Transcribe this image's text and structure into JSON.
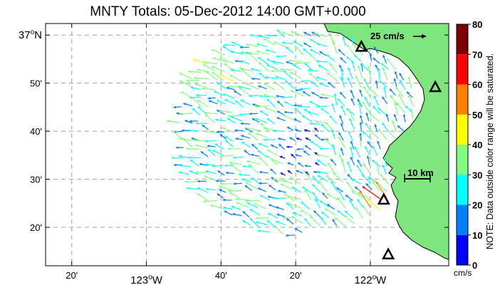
{
  "title": "MNTY Totals: 05-Dec-2012 14:00 GMT+0.000",
  "lat_ticks": [
    {
      "deg": "37",
      "sup": "o",
      "hemi": "N",
      "lat": 37.0
    },
    {
      "text": "50'",
      "lat": 36.8333
    },
    {
      "text": "40'",
      "lat": 36.6667
    },
    {
      "text": "30'",
      "lat": 36.5
    },
    {
      "text": "20'",
      "lat": 36.3333
    }
  ],
  "lon_ticks": [
    {
      "text": "20'",
      "lon": -123.3333
    },
    {
      "deg": "123",
      "sup": "o",
      "hemi": "W",
      "lon": -123.0
    },
    {
      "text": "40'",
      "lon": -122.6667
    },
    {
      "text": "20'",
      "lon": -122.3333
    },
    {
      "deg": "122",
      "sup": "o",
      "hemi": "W",
      "lon": -122.0
    }
  ],
  "extent": {
    "lon_min": -123.45,
    "lon_max": -121.65,
    "lat_min": 36.2,
    "lat_max": 37.04
  },
  "reference_vector": {
    "label": "25 cm/s",
    "speed": 25
  },
  "scale_bar": {
    "label": "10 km",
    "km": 10
  },
  "stations": [
    {
      "lon": -122.04,
      "lat": 36.96
    },
    {
      "lon": -121.71,
      "lat": 36.82
    },
    {
      "lon": -121.94,
      "lat": 36.43
    },
    {
      "lon": -121.92,
      "lat": 36.24
    }
  ],
  "colorbar": {
    "labels": [
      "0",
      "10",
      "20",
      "30",
      "40",
      "50",
      "60",
      "70",
      "80"
    ],
    "colors": [
      "#0000ff",
      "#007fff",
      "#00ffff",
      "#7fff7f",
      "#ffff00",
      "#ff7f00",
      "#ff0000",
      "#7f0000"
    ],
    "note": "NOTE: Data outside color range will be saturated.",
    "units": "cm/s"
  },
  "colors": {
    "land": "#7fe57f",
    "grid": "#a0a0a0",
    "coastline": "#000000"
  }
}
